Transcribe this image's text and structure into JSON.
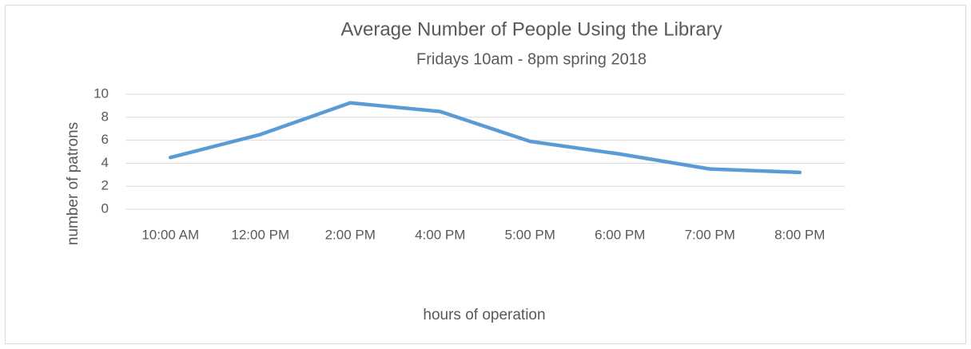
{
  "chart_data": {
    "type": "line",
    "title": "Average Number of People Using the Library",
    "subtitle": "Fridays 10am - 8pm spring 2018",
    "x_label": "hours of operation",
    "y_label": "number of patrons",
    "categories": [
      "10:00 AM",
      "12:00 PM",
      "2:00 PM",
      "4:00 PM",
      "5:00 PM",
      "6:00 PM",
      "7:00 PM",
      "8:00 PM"
    ],
    "values": [
      4.5,
      6.5,
      9.25,
      8.5,
      5.9,
      4.8,
      3.5,
      3.2
    ],
    "color": "#5b9bd5",
    "ylim": [
      0,
      10
    ],
    "yticks": [
      0,
      2,
      4,
      6,
      8,
      10
    ],
    "grid": true
  }
}
